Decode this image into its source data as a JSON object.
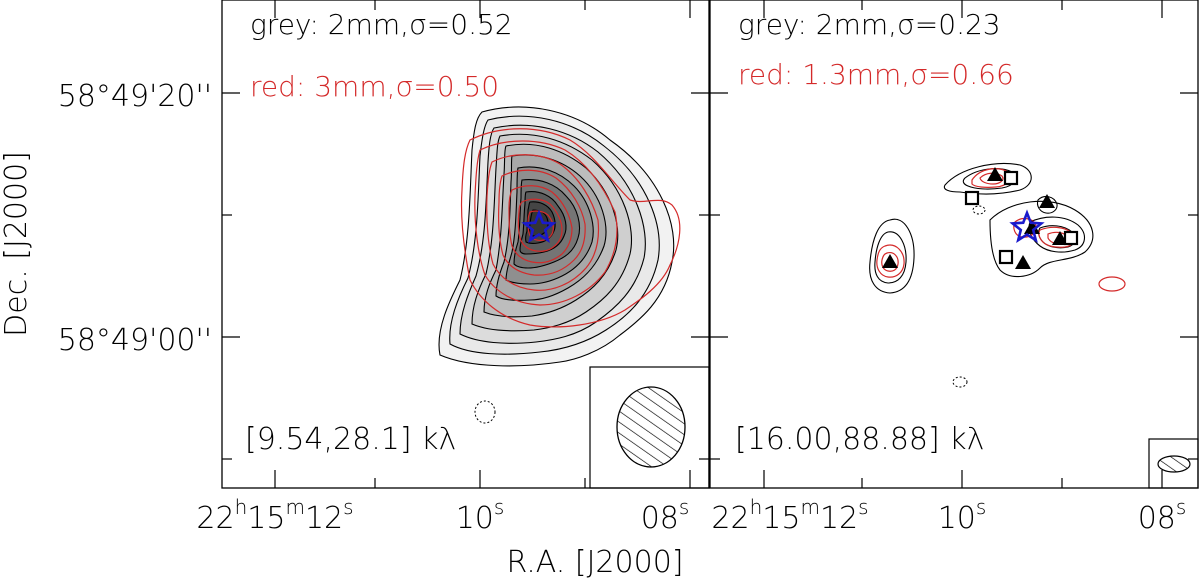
{
  "chart_data": {
    "type": "contour",
    "xlabel": "R.A. [J2000]",
    "ylabel": "Dec. [J2000]",
    "ytick_labels": [
      "58°49'20''",
      "58°49'00''"
    ],
    "panels": [
      {
        "id": "left",
        "grey_label": "grey: 2mm,σ=0.52",
        "red_label": "red: 3mm,σ=0.50",
        "uv_range": "[9.54,28.1] kλ",
        "xtick_labels": [
          {
            "h": "22",
            "m": "15",
            "s": "12"
          },
          {
            "s": "10"
          },
          {
            "s": "08"
          }
        ]
      },
      {
        "id": "right",
        "grey_label": "grey: 2mm,σ=0.23",
        "red_label": "red: 1.3mm,σ=0.66",
        "uv_range": "[16.00,88.88] kλ",
        "xtick_labels": [
          {
            "h": "22",
            "m": "15",
            "s": "12"
          },
          {
            "s": "10"
          },
          {
            "s": "08"
          }
        ]
      }
    ]
  },
  "colors": {
    "grey_contour": "#000000",
    "red_contour": "#d42a2a",
    "star": "#1a1acc",
    "red_text": "#d42a2a",
    "fill_dark": "#2e2e2e",
    "fill_light": "#e0e0e0"
  }
}
